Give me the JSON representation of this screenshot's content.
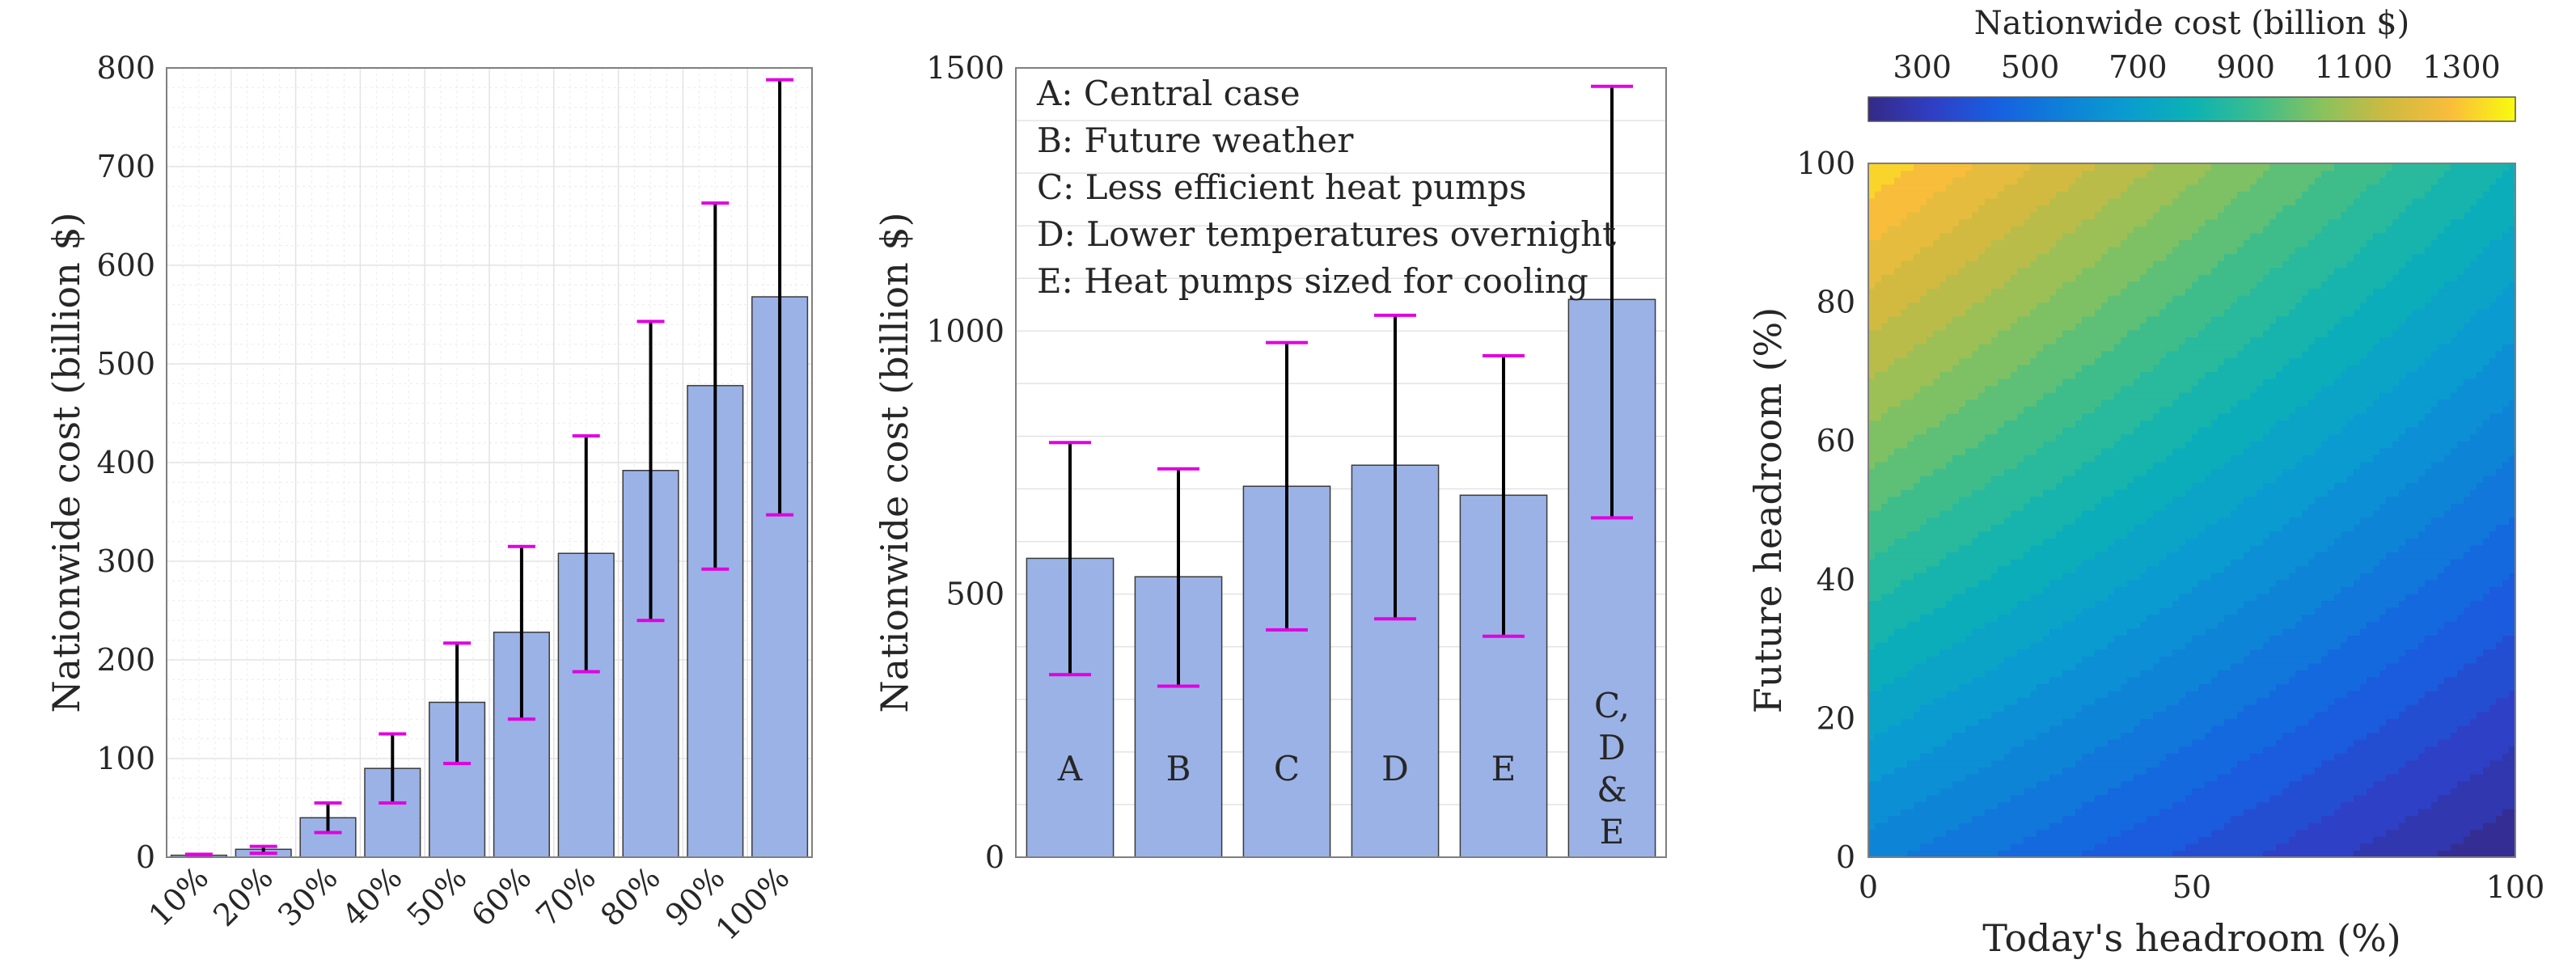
{
  "chart_data": [
    {
      "type": "bar",
      "title": "",
      "xlabel": "",
      "ylabel": "Nationwide cost (billion $)",
      "ylim": [
        0,
        800
      ],
      "yticks": [
        "0",
        "100",
        "200",
        "300",
        "400",
        "500",
        "600",
        "700",
        "800"
      ],
      "categories": [
        "10%",
        "20%",
        "30%",
        "40%",
        "50%",
        "60%",
        "70%",
        "80%",
        "90%",
        "100%"
      ],
      "values": [
        2,
        8,
        40,
        90,
        157,
        228,
        308,
        392,
        478,
        568
      ],
      "error_low": [
        1,
        4,
        25,
        55,
        95,
        140,
        188,
        240,
        292,
        347
      ],
      "error_high": [
        3,
        11,
        55,
        125,
        217,
        315,
        427,
        543,
        663,
        788
      ],
      "grid": "on, with minor grid",
      "bar_color": "#9bb2e6",
      "error_bar_color": "#000000",
      "error_cap_color": "#e000e0"
    },
    {
      "type": "bar",
      "title": "",
      "xlabel": "",
      "ylabel": "Nationwide cost (billion $)",
      "ylim": [
        0,
        1500
      ],
      "yticks": [
        "0",
        "500",
        "1000",
        "1500"
      ],
      "categories": [
        "A",
        "B",
        "C",
        "D",
        "E",
        "C,\nD\n&\nE"
      ],
      "category_lines": [
        [
          "A"
        ],
        [
          "B"
        ],
        [
          "C"
        ],
        [
          "D"
        ],
        [
          "E"
        ],
        [
          "C,",
          "D",
          "&",
          "E"
        ]
      ],
      "values": [
        568,
        533,
        705,
        745,
        688,
        1060
      ],
      "error_low": [
        347,
        325,
        432,
        453,
        420,
        645
      ],
      "error_high": [
        788,
        738,
        978,
        1030,
        953,
        1465
      ],
      "legend_entries": [
        "A: Central case",
        "B: Future weather",
        "C: Less efficient heat pumps",
        "D: Lower temperatures overnight",
        "E: Heat pumps sized for cooling"
      ],
      "legend_position": "top-left",
      "grid": "on",
      "bar_color": "#9bb2e6"
    },
    {
      "type": "heatmap",
      "subtype": "filled contour",
      "title": "",
      "xlabel": "Today's headroom (%)",
      "ylabel": "Future headroom (%)",
      "xlim": [
        0,
        100
      ],
      "ylim": [
        0,
        100
      ],
      "xticks": [
        "0",
        "50",
        "100"
      ],
      "yticks": [
        "0",
        "20",
        "40",
        "60",
        "80",
        "100"
      ],
      "colorbar": {
        "label": "Nationwide cost (billion $)",
        "position": "top",
        "ticks": [
          "300",
          "500",
          "700",
          "900",
          "1100",
          "1300"
        ],
        "range": [
          200,
          1400
        ],
        "colormap": "parula"
      },
      "approx_model": {
        "description": "cost increases with future headroom and decreases with today's headroom",
        "corner_values": {
          "x0_y0": 568,
          "x100_y0": 205,
          "x0_y100": 1340,
          "x100_y100": 800
        }
      },
      "contour_step": 50
    }
  ]
}
